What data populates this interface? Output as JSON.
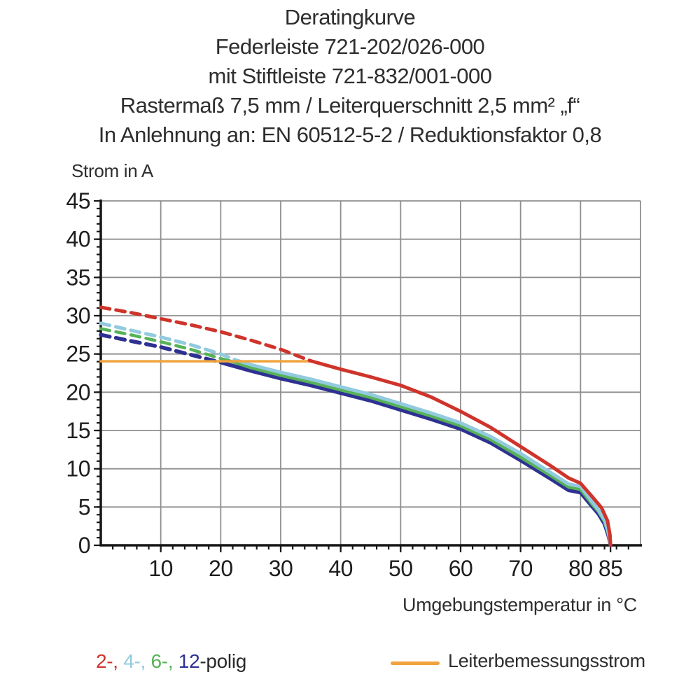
{
  "title": {
    "line1": "Deratingkurve",
    "line2": "Federleiste 721-202/026-000",
    "line3": "mit Stiftleiste 721-832/001-000",
    "line4": "Rastermaß 7,5 mm / Leiterquerschnitt 2,5 mm² „f“",
    "line5": "In Anlehnung an: EN 60512-5-2 / Reduktionsfaktor 0,8"
  },
  "chart_data": {
    "type": "line",
    "title": "Deratingkurve",
    "xlabel": "Umgebungstemperatur in °C",
    "ylabel": "Strom in A",
    "xlim": [
      0,
      90
    ],
    "ylim": [
      0,
      45
    ],
    "grid": true,
    "grid_color": "#8f8f8f",
    "axis_color": "#161616",
    "x_major_ticks": [
      10,
      20,
      30,
      40,
      50,
      60,
      70,
      80,
      85
    ],
    "x_tick_labels": [
      "10",
      "20",
      "30",
      "40",
      "50",
      "60",
      "70",
      "80",
      "85"
    ],
    "x_minor_step": 2,
    "y_major_ticks": [
      0,
      5,
      10,
      15,
      20,
      25,
      30,
      35,
      40,
      45
    ],
    "y_minor_step": 1,
    "series": [
      {
        "name": "12-polig",
        "color": "#2e3192",
        "width": 5.5,
        "dashed": [
          [
            0,
            27.5
          ],
          [
            5,
            26.7
          ],
          [
            10,
            25.9
          ],
          [
            15,
            24.9
          ],
          [
            20,
            23.9
          ]
        ],
        "solid": [
          [
            20,
            23.9
          ],
          [
            25,
            22.8
          ],
          [
            30,
            21.8
          ],
          [
            35,
            20.9
          ],
          [
            40,
            19.9
          ],
          [
            45,
            18.9
          ],
          [
            50,
            17.7
          ],
          [
            55,
            16.5
          ],
          [
            60,
            15.2
          ],
          [
            65,
            13.4
          ],
          [
            70,
            11.1
          ],
          [
            75,
            8.7
          ],
          [
            78,
            7.2
          ],
          [
            80,
            6.9
          ],
          [
            82,
            5.0
          ],
          [
            83,
            4.1
          ],
          [
            84,
            2.8
          ],
          [
            84.6,
            1.4
          ],
          [
            84.85,
            0.6
          ],
          [
            85,
            0
          ]
        ]
      },
      {
        "name": "6-polig",
        "color": "#57b257",
        "width": 4.5,
        "dashed": [
          [
            0,
            28.3
          ],
          [
            5,
            27.5
          ],
          [
            10,
            26.6
          ],
          [
            15,
            25.6
          ],
          [
            20,
            24.4
          ],
          [
            21.5,
            24.1
          ]
        ],
        "solid": [
          [
            21.5,
            24.1
          ],
          [
            25,
            23.2
          ],
          [
            30,
            22.2
          ],
          [
            35,
            21.3
          ],
          [
            40,
            20.3
          ],
          [
            45,
            19.3
          ],
          [
            50,
            18.1
          ],
          [
            55,
            16.9
          ],
          [
            60,
            15.6
          ],
          [
            65,
            13.8
          ],
          [
            70,
            11.5
          ],
          [
            75,
            9.1
          ],
          [
            78,
            7.6
          ],
          [
            80,
            7.3
          ],
          [
            82,
            5.3
          ],
          [
            83,
            4.4
          ],
          [
            84,
            3.1
          ],
          [
            84.6,
            1.6
          ],
          [
            84.85,
            0.7
          ],
          [
            85,
            0
          ]
        ]
      },
      {
        "name": "4-polig",
        "color": "#92cade",
        "width": 5,
        "dashed": [
          [
            0,
            29.0
          ],
          [
            5,
            28.1
          ],
          [
            10,
            27.2
          ],
          [
            15,
            26.2
          ],
          [
            20,
            25.0
          ],
          [
            22.5,
            24.2
          ]
        ],
        "solid": [
          [
            22.5,
            24.2
          ],
          [
            25,
            23.6
          ],
          [
            30,
            22.6
          ],
          [
            35,
            21.7
          ],
          [
            40,
            20.7
          ],
          [
            45,
            19.7
          ],
          [
            50,
            18.5
          ],
          [
            55,
            17.3
          ],
          [
            60,
            16.0
          ],
          [
            65,
            14.2
          ],
          [
            70,
            12.0
          ],
          [
            75,
            9.5
          ],
          [
            78,
            8.0
          ],
          [
            80,
            7.7
          ],
          [
            82,
            5.6
          ],
          [
            83,
            4.6
          ],
          [
            84,
            3.3
          ],
          [
            84.6,
            1.8
          ],
          [
            84.85,
            0.8
          ],
          [
            85,
            0
          ]
        ]
      },
      {
        "name": "Leiterbemessungsstrom",
        "color": "#f0a23c",
        "width": 3.5,
        "solid": [
          [
            0,
            24.05
          ],
          [
            35,
            24.05
          ]
        ]
      },
      {
        "name": "2-polig",
        "color": "#cf342b",
        "width": 5,
        "dashed": [
          [
            0,
            31.1
          ],
          [
            5,
            30.4
          ],
          [
            10,
            29.6
          ],
          [
            15,
            28.8
          ],
          [
            20,
            27.9
          ],
          [
            25,
            26.8
          ],
          [
            30,
            25.6
          ],
          [
            35,
            24.1
          ]
        ],
        "solid": [
          [
            35,
            24.1
          ],
          [
            40,
            23.0
          ],
          [
            45,
            22.0
          ],
          [
            50,
            20.9
          ],
          [
            55,
            19.4
          ],
          [
            60,
            17.5
          ],
          [
            65,
            15.4
          ],
          [
            70,
            12.9
          ],
          [
            75,
            10.4
          ],
          [
            78,
            8.8
          ],
          [
            80,
            8.1
          ],
          [
            82,
            6.3
          ],
          [
            83.5,
            4.9
          ],
          [
            84.5,
            3.2
          ],
          [
            84.9,
            1.4
          ],
          [
            85,
            0
          ]
        ]
      }
    ]
  },
  "legend": {
    "poles_parts": [
      {
        "text": "2-,",
        "color": "#cf342b"
      },
      {
        "text": " 4-,",
        "color": "#92cade"
      },
      {
        "text": " 6-,",
        "color": "#57b257"
      },
      {
        "text": " 12",
        "color": "#2e3192"
      },
      {
        "text": "-polig",
        "color": "#2a2a2a"
      }
    ],
    "rated_label": "Leiterbemessungsstrom"
  }
}
